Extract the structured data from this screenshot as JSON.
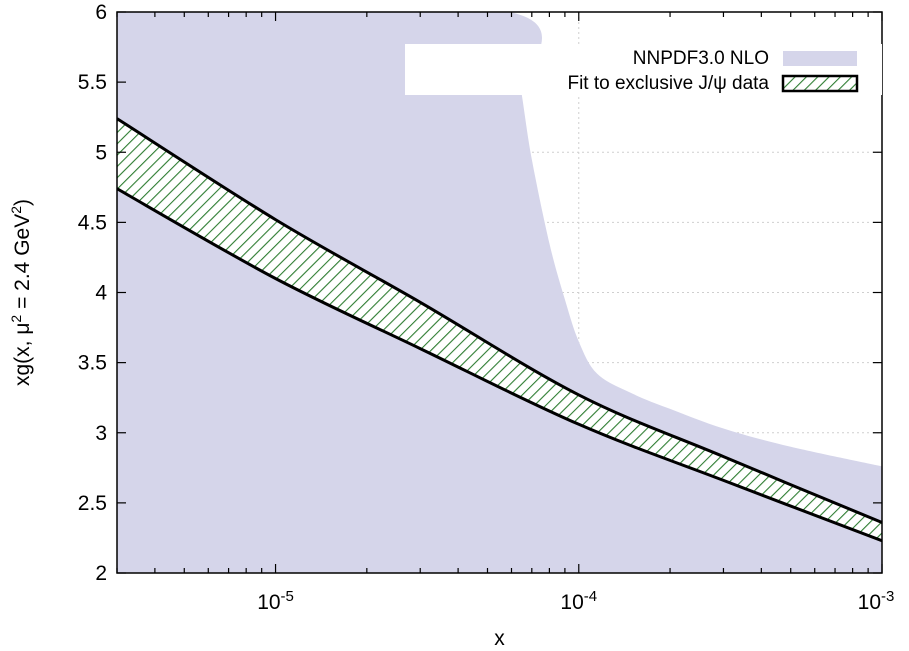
{
  "chart_data": {
    "type": "area",
    "xlabel": "x",
    "ylabel": {
      "prefix": "xg(x, μ",
      "sup1": "2",
      "mid": " = 2.4 GeV",
      "sup2": "2",
      "suffix": ")"
    },
    "xscale": "log",
    "xlim": [
      3e-06,
      0.001
    ],
    "ylim": [
      2,
      6
    ],
    "grid": true,
    "legend_position": "top-right",
    "x_ticks": [
      {
        "value": 1e-05,
        "base": "10",
        "exp": "-5"
      },
      {
        "value": 0.0001,
        "base": "10",
        "exp": "-4"
      },
      {
        "value": 0.001,
        "base": "10",
        "exp": "-3"
      }
    ],
    "y_ticks": [
      {
        "value": 2,
        "label": "2"
      },
      {
        "value": 2.5,
        "label": "2.5"
      },
      {
        "value": 3,
        "label": "3"
      },
      {
        "value": 3.5,
        "label": "3.5"
      },
      {
        "value": 4,
        "label": "4"
      },
      {
        "value": 4.5,
        "label": "4.5"
      },
      {
        "value": 5,
        "label": "5"
      },
      {
        "value": 5.5,
        "label": "5.5"
      },
      {
        "value": 6,
        "label": "6"
      }
    ],
    "series": [
      {
        "name": "NNPDF3.0 NLO",
        "style": "band",
        "color": "#d5d5ea",
        "x": [
          3e-06,
          5.9e-05,
          6.5e-05,
          7e-05,
          8e-05,
          9e-05,
          0.0001,
          0.000115,
          0.00015,
          0.0002,
          0.0003,
          0.0005,
          0.001
        ],
        "upper": [
          6,
          6,
          5.4,
          4.95,
          4.35,
          3.95,
          3.65,
          3.42,
          3.28,
          3.17,
          3.03,
          2.9,
          2.76
        ],
        "lower": [
          2,
          2,
          2,
          2,
          2,
          2,
          2,
          2,
          2,
          2,
          2,
          2,
          2
        ]
      },
      {
        "name": "Fit to exclusive J/ψ data",
        "style": "hatched-band",
        "color": "#2e7d32",
        "x": [
          3e-06,
          1e-05,
          3e-05,
          0.0001,
          0.0003,
          0.001
        ],
        "upper": [
          5.24,
          4.52,
          3.93,
          3.27,
          2.83,
          2.36
        ],
        "lower": [
          4.74,
          4.1,
          3.6,
          3.06,
          2.66,
          2.23
        ]
      }
    ]
  }
}
